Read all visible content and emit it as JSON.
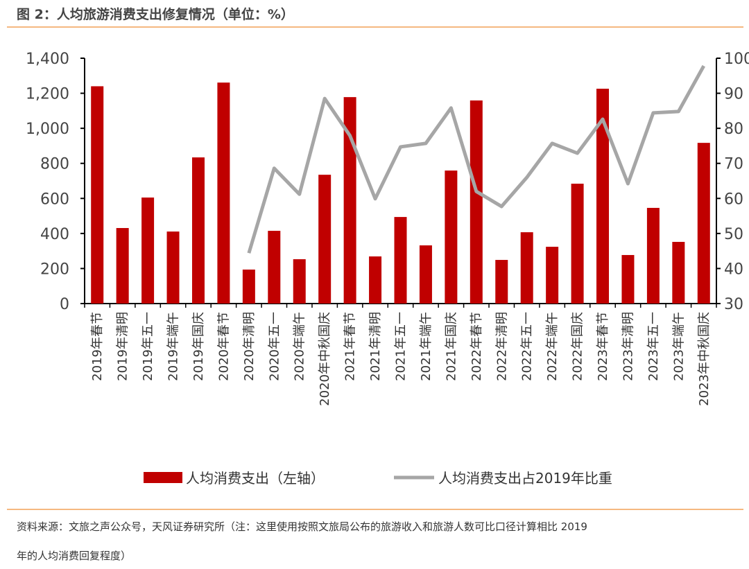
{
  "title": "图 2：人均旅游消费支出修复情况（单位：%）",
  "source_line1": "资料来源：文旅之声公众号，天风证券研究所（注：这里使用按照文旅局公布的旅游收入和旅游人数可比口径计算相比 2019",
  "source_line2": "年的人均消费回复程度）",
  "chart_data": {
    "type": "bar+line",
    "categories": [
      "2019年春节",
      "2019年清明",
      "2019年五一",
      "2019年端午",
      "2019年国庆",
      "2020年春节",
      "2020年清明",
      "2020年五一",
      "2020年端午",
      "2020年中秋国庆",
      "2021年春节",
      "2021年清明",
      "2021年五一",
      "2021年端午",
      "2021年国庆",
      "2022年春节",
      "2022年清明",
      "2022年五一",
      "2022年端午",
      "2022年国庆",
      "2023年春节",
      "2023年清明",
      "2023年五一",
      "2023年端午",
      "2023年中秋国庆"
    ],
    "series": [
      {
        "name": "人均消费支出（左轴）",
        "type": "bar",
        "axis": "left",
        "color": "#c00000",
        "values": [
          1240,
          431,
          605,
          411,
          834,
          1261,
          194,
          415,
          253,
          735,
          1178,
          269,
          494,
          332,
          759,
          1159,
          249,
          407,
          324,
          684,
          1226,
          277,
          546,
          352,
          917
        ]
      },
      {
        "name": "人均消费支出占2019年比重",
        "type": "line",
        "axis": "right",
        "color": "#a6a6a6",
        "values": [
          null,
          null,
          null,
          null,
          null,
          null,
          44.4,
          68.6,
          61.2,
          88.5,
          77.9,
          59.9,
          74.7,
          75.7,
          85.8,
          62.0,
          57.7,
          66.0,
          75.7,
          72.9,
          82.6,
          64.2,
          84.4,
          84.8,
          97.8
        ]
      }
    ],
    "left_axis": {
      "ylim": [
        0,
        1400
      ],
      "ticks": [
        0,
        200,
        400,
        600,
        800,
        1000,
        1200,
        1400
      ],
      "tick_labels": [
        "0",
        "200",
        "400",
        "600",
        "800",
        "1,000",
        "1,200",
        "1,400"
      ]
    },
    "right_axis": {
      "ylim": [
        30,
        100
      ],
      "ticks": [
        30,
        40,
        50,
        60,
        70,
        80,
        90,
        100
      ]
    },
    "legend_position": "bottom"
  }
}
